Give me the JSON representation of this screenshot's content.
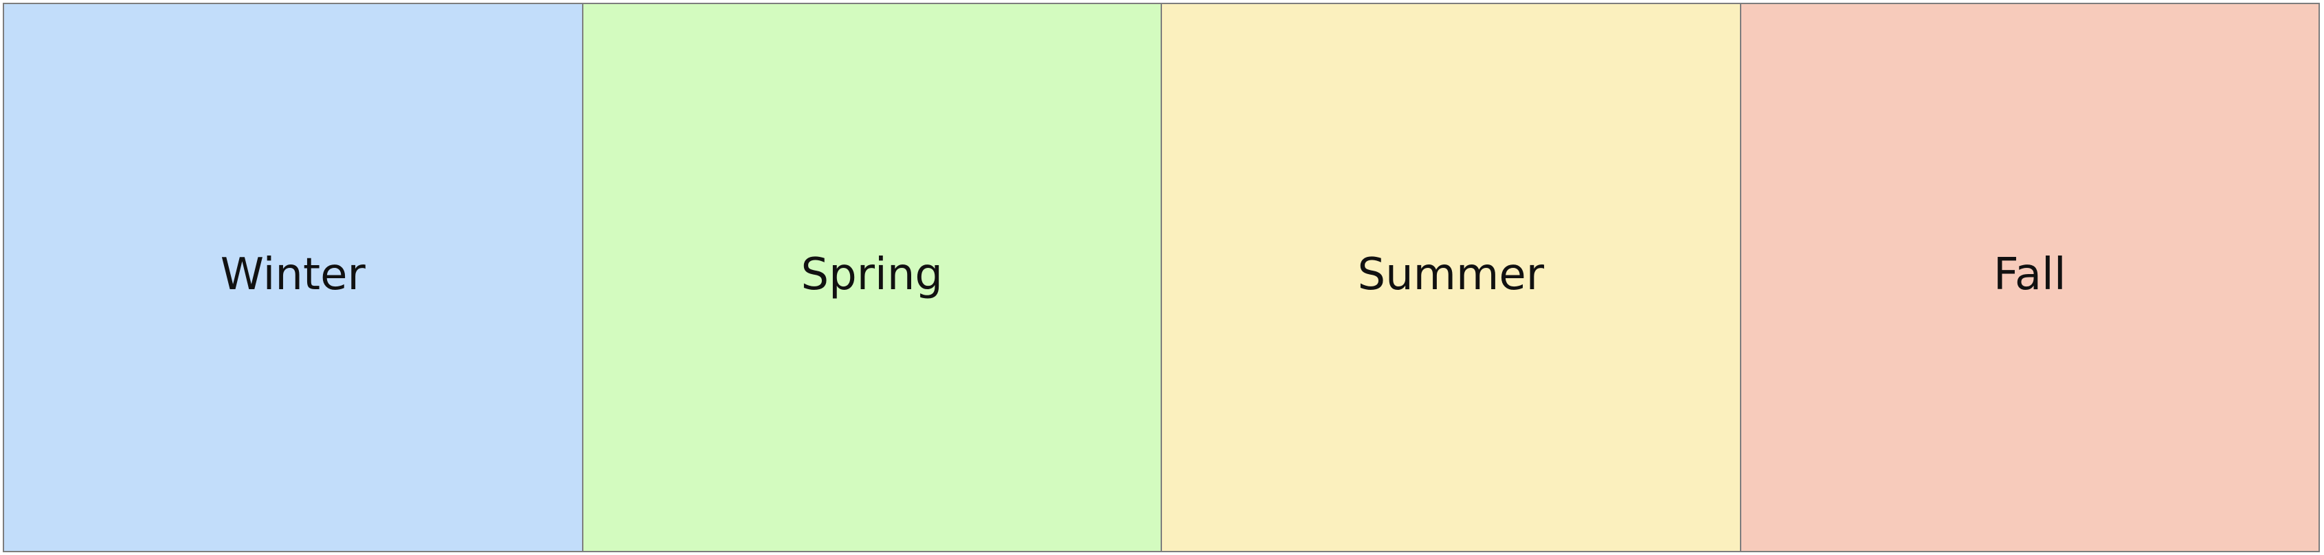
{
  "seasons": [
    {
      "label": "Winter",
      "color": "#c2ddfa"
    },
    {
      "label": "Spring",
      "color": "#d3fbbf"
    },
    {
      "label": "Summer",
      "color": "#fbf0be"
    },
    {
      "label": "Fall",
      "color": "#f7cbbb"
    }
  ],
  "border_color": "#7d7d7d"
}
